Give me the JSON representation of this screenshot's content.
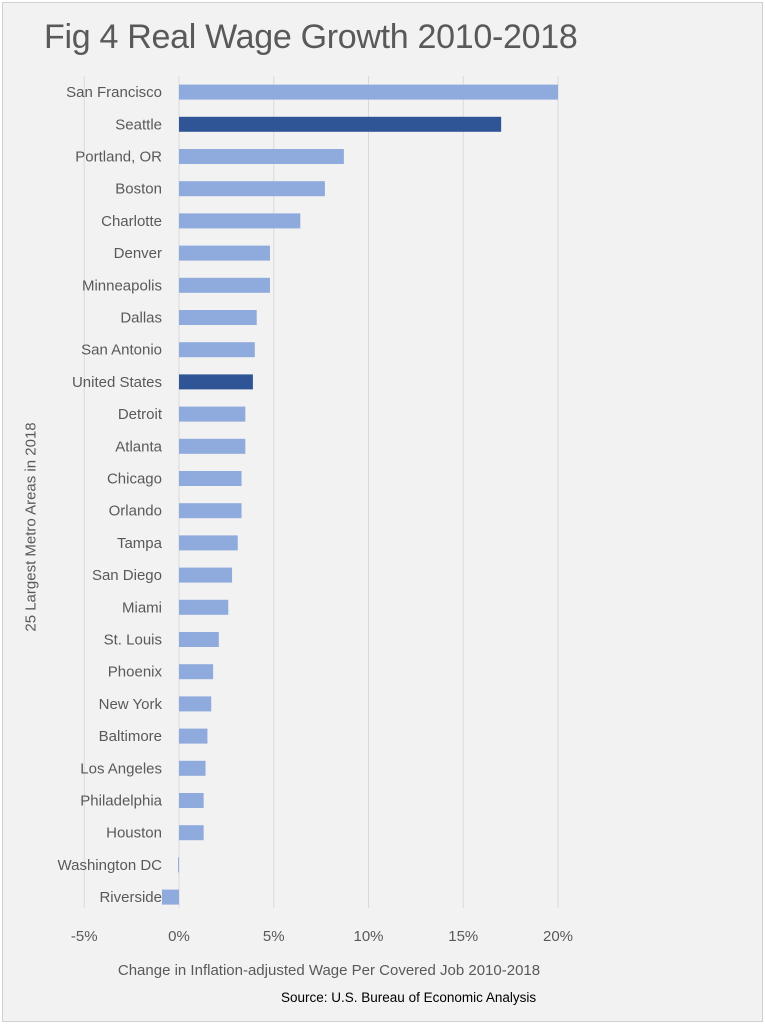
{
  "chart_data": {
    "type": "bar",
    "orientation": "horizontal",
    "title": "Fig 4 Real Wage Growth 2010-2018",
    "xlabel": "Change in Inflation-adjusted Wage Per Covered Job 2010-2018",
    "ylabel": "25 Largest Metro Areas in 2018",
    "source": "Source: U.S. Bureau of Economic Analysis",
    "xlim": [
      -5,
      20
    ],
    "xticks": [
      -5,
      0,
      5,
      10,
      15,
      20
    ],
    "xtick_labels": [
      "-5%",
      "0%",
      "5%",
      "10%",
      "15%",
      "20%"
    ],
    "grid": "vertical",
    "legend": "none",
    "categories": [
      "San Francisco",
      "Seattle",
      "Portland, OR",
      "Boston",
      "Charlotte",
      "Denver",
      "Minneapolis",
      "Dallas",
      "San Antonio",
      "United States",
      "Detroit",
      "Atlanta",
      "Chicago",
      "Orlando",
      "Tampa",
      "San Diego",
      "Miami",
      "St. Louis",
      "Phoenix",
      "New York",
      "Baltimore",
      "Los Angeles",
      "Philadelphia",
      "Houston",
      "Washington DC",
      "Riverside"
    ],
    "values": [
      20.0,
      17.0,
      8.7,
      7.7,
      6.4,
      4.8,
      4.8,
      4.1,
      4.0,
      3.9,
      3.5,
      3.5,
      3.3,
      3.3,
      3.1,
      2.8,
      2.6,
      2.1,
      1.8,
      1.7,
      1.5,
      1.4,
      1.3,
      1.3,
      -0.05,
      -0.9
    ],
    "colors": {
      "default": "#8faadc",
      "highlight": "#2f5597",
      "grid": "#d9d9d9",
      "text": "#595959"
    },
    "highlighted": [
      "Seattle",
      "United States"
    ]
  }
}
